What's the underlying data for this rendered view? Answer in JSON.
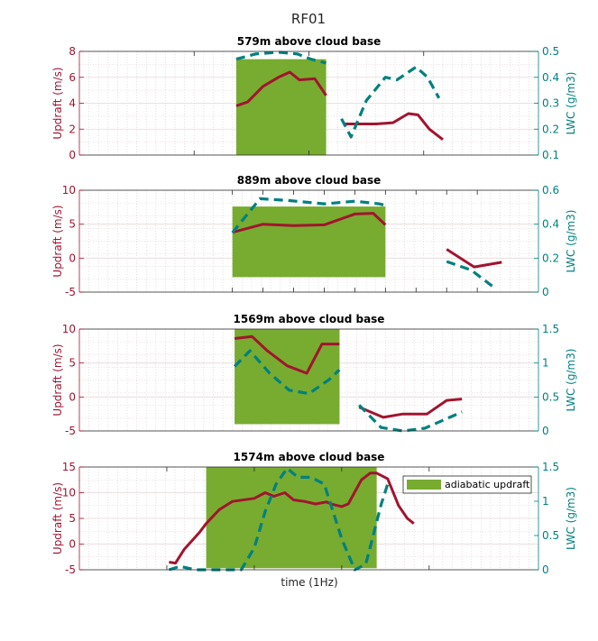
{
  "figure_title": "RF01",
  "colors": {
    "updraft": "#a2142f",
    "lwc": "#008080",
    "adiabatic_fill": "#77ac30",
    "axis_box": "#262626",
    "grid": "#dcc8c8"
  },
  "legend": {
    "label": "adiabatic updraft",
    "placement": "top-right of last panel"
  },
  "chart_data": [
    {
      "type": "line",
      "title": "579m above cloud base",
      "xlabel": "",
      "ylabel_left": "Updraft (m/s)",
      "ylabel_right": "LWC (g/m3)",
      "xlim": [
        0,
        24
      ],
      "ylim_left": [
        0,
        8
      ],
      "ylim_right": [
        0.1,
        0.5
      ],
      "yticks_left": [
        "0",
        "2",
        "4",
        "6",
        "8"
      ],
      "yticks_right": [
        "0.1",
        "0.2",
        "0.3",
        "0.4",
        "0.5"
      ],
      "x_major_ticks": [
        6,
        12,
        18
      ],
      "adiabatic_band": {
        "x": [
          8.2,
          12.9
        ],
        "updraft": [
          0,
          7.4
        ]
      },
      "series": [
        {
          "name": "updraft",
          "axis": "left",
          "style": "solid",
          "segments": [
            [
              [
                8.2,
                3.8
              ],
              [
                8.8,
                4.1
              ],
              [
                9.6,
                5.3
              ],
              [
                10.4,
                6.0
              ],
              [
                11.0,
                6.4
              ],
              [
                11.5,
                5.8
              ],
              [
                12.3,
                5.9
              ],
              [
                12.9,
                4.6
              ]
            ],
            [
              [
                13.8,
                2.4
              ],
              [
                14.5,
                2.4
              ],
              [
                15.5,
                2.4
              ],
              [
                16.4,
                2.5
              ],
              [
                17.2,
                3.2
              ],
              [
                17.7,
                3.1
              ],
              [
                18.3,
                2.0
              ],
              [
                19.0,
                1.2
              ]
            ]
          ]
        },
        {
          "name": "LWC",
          "axis": "right",
          "style": "dashed",
          "segments": [
            [
              [
                8.2,
                0.47
              ],
              [
                9.2,
                0.49
              ],
              [
                10.4,
                0.497
              ],
              [
                11.4,
                0.49
              ],
              [
                12.1,
                0.47
              ],
              [
                12.9,
                0.455
              ]
            ],
            [
              [
                13.7,
                0.24
              ],
              [
                14.2,
                0.17
              ],
              [
                15.0,
                0.31
              ],
              [
                16.0,
                0.4
              ],
              [
                16.6,
                0.39
              ],
              [
                17.2,
                0.42
              ],
              [
                17.6,
                0.44
              ],
              [
                18.2,
                0.4
              ],
              [
                18.8,
                0.32
              ]
            ]
          ]
        }
      ]
    },
    {
      "type": "line",
      "title": "889m above cloud base",
      "xlabel": "",
      "ylabel_left": "Updraft (m/s)",
      "ylabel_right": "LWC (g/m3)",
      "xlim": [
        0,
        15
      ],
      "ylim_left": [
        -5,
        10
      ],
      "ylim_right": [
        0,
        0.6
      ],
      "yticks_left": [
        "-5",
        "0",
        "5",
        "10"
      ],
      "yticks_right": [
        "0",
        "0.2",
        "0.4",
        "0.6"
      ],
      "x_major_ticks": [
        5,
        6,
        7,
        8,
        9,
        10,
        11,
        12,
        13
      ],
      "adiabatic_band": {
        "x": [
          5,
          10
        ],
        "updraft": [
          -2.8,
          7.6
        ]
      },
      "series": [
        {
          "name": "updraft",
          "axis": "left",
          "style": "solid",
          "segments": [
            [
              [
                5.0,
                3.8
              ],
              [
                6.0,
                5.0
              ],
              [
                7.0,
                4.8
              ],
              [
                8.0,
                4.9
              ],
              [
                9.0,
                6.5
              ],
              [
                9.6,
                6.6
              ],
              [
                10.0,
                4.9
              ]
            ],
            [
              [
                12.0,
                1.3
              ],
              [
                12.9,
                -1.3
              ],
              [
                13.8,
                -0.6
              ]
            ]
          ]
        },
        {
          "name": "LWC",
          "axis": "right",
          "style": "dashed",
          "segments": [
            [
              [
                5.0,
                0.35
              ],
              [
                5.9,
                0.55
              ],
              [
                6.8,
                0.54
              ],
              [
                8.0,
                0.52
              ],
              [
                9.0,
                0.535
              ],
              [
                9.8,
                0.52
              ],
              [
                10.0,
                0.51
              ]
            ],
            [
              [
                12.0,
                0.18
              ],
              [
                12.8,
                0.13
              ],
              [
                13.6,
                0.02
              ]
            ]
          ]
        }
      ]
    },
    {
      "type": "line",
      "title": "1569m above cloud base",
      "xlabel": "",
      "ylabel_left": "Updraft (m/s)",
      "ylabel_right": "LWC (g/m3)",
      "xlim": [
        0,
        21
      ],
      "ylim_left": [
        -5,
        10
      ],
      "ylim_right": [
        0,
        1.5
      ],
      "yticks_left": [
        "-5",
        "0",
        "5",
        "10"
      ],
      "yticks_right": [
        "0",
        "0.5",
        "1",
        "1.5"
      ],
      "x_major_ticks": [],
      "adiabatic_band": {
        "x": [
          7.1,
          11.9
        ],
        "updraft": [
          -4.0,
          10.0
        ]
      },
      "series": [
        {
          "name": "updraft",
          "axis": "left",
          "style": "solid",
          "segments": [
            [
              [
                7.1,
                8.6
              ],
              [
                7.9,
                8.9
              ],
              [
                8.6,
                6.8
              ],
              [
                9.5,
                4.6
              ],
              [
                10.4,
                3.5
              ],
              [
                11.1,
                7.8
              ],
              [
                11.9,
                7.8
              ]
            ],
            [
              [
                12.8,
                -1.5
              ],
              [
                13.9,
                -3.0
              ],
              [
                14.8,
                -2.5
              ],
              [
                15.9,
                -2.5
              ],
              [
                16.8,
                -0.5
              ],
              [
                17.5,
                -0.3
              ]
            ]
          ]
        },
        {
          "name": "LWC",
          "axis": "right",
          "style": "dashed",
          "segments": [
            [
              [
                7.1,
                0.95
              ],
              [
                7.8,
                1.18
              ],
              [
                8.7,
                0.85
              ],
              [
                9.6,
                0.6
              ],
              [
                10.5,
                0.55
              ],
              [
                11.4,
                0.75
              ],
              [
                11.9,
                0.9
              ]
            ],
            [
              [
                12.8,
                0.38
              ],
              [
                13.8,
                0.05
              ],
              [
                14.8,
                0.0
              ],
              [
                15.8,
                0.04
              ],
              [
                16.8,
                0.18
              ],
              [
                17.5,
                0.28
              ]
            ]
          ]
        }
      ]
    },
    {
      "type": "line",
      "title": "1574m above cloud base",
      "xlabel": "time (1Hz)",
      "ylabel_left": "Updraft (m/s)",
      "ylabel_right": "LWC (g/m3)",
      "xlim": [
        0,
        21
      ],
      "ylim_left": [
        -5,
        15
      ],
      "ylim_right": [
        0,
        1.5
      ],
      "yticks_left": [
        "-5",
        "0",
        "5",
        "10",
        "15"
      ],
      "yticks_right": [
        "0",
        "0.5",
        "1",
        "1.5"
      ],
      "x_major_ticks": [
        4,
        8,
        12,
        16
      ],
      "adiabatic_band": {
        "x": [
          5.8,
          13.6
        ],
        "updraft": [
          -4.7,
          15
        ]
      },
      "series": [
        {
          "name": "updraft",
          "axis": "left",
          "style": "solid",
          "segments": [
            [
              [
                4.1,
                -3.5
              ],
              [
                4.4,
                -3.7
              ],
              [
                4.8,
                -1.0
              ],
              [
                5.5,
                2.3
              ],
              [
                5.8,
                4.0
              ],
              [
                6.4,
                6.7
              ],
              [
                7.0,
                8.3
              ],
              [
                8.0,
                8.9
              ],
              [
                8.5,
                10.0
              ],
              [
                8.9,
                9.3
              ],
              [
                9.4,
                10.0
              ],
              [
                9.8,
                8.6
              ],
              [
                10.3,
                8.3
              ],
              [
                10.8,
                7.8
              ],
              [
                11.3,
                8.2
              ],
              [
                11.6,
                7.7
              ],
              [
                12.0,
                7.3
              ],
              [
                12.3,
                7.8
              ],
              [
                12.9,
                12.5
              ],
              [
                13.3,
                13.8
              ],
              [
                13.6,
                13.8
              ],
              [
                14.1,
                12.7
              ],
              [
                14.6,
                7.5
              ],
              [
                15.0,
                5.0
              ],
              [
                15.3,
                4.0
              ]
            ]
          ]
        },
        {
          "name": "LWC",
          "axis": "right",
          "style": "dashed",
          "segments": [
            [
              [
                4.1,
                0.0
              ],
              [
                4.6,
                0.05
              ],
              [
                5.3,
                0.0
              ],
              [
                6.4,
                0.0
              ],
              [
                7.4,
                0.0
              ],
              [
                8.0,
                0.32
              ],
              [
                8.5,
                0.85
              ],
              [
                9.0,
                1.25
              ],
              [
                9.5,
                1.48
              ],
              [
                10.0,
                1.35
              ],
              [
                10.6,
                1.35
              ],
              [
                11.2,
                1.25
              ],
              [
                11.6,
                0.85
              ],
              [
                12.0,
                0.45
              ],
              [
                12.6,
                0.0
              ],
              [
                13.1,
                0.08
              ],
              [
                13.4,
                0.45
              ],
              [
                13.8,
                0.95
              ],
              [
                14.1,
                1.25
              ]
            ]
          ]
        }
      ]
    }
  ]
}
